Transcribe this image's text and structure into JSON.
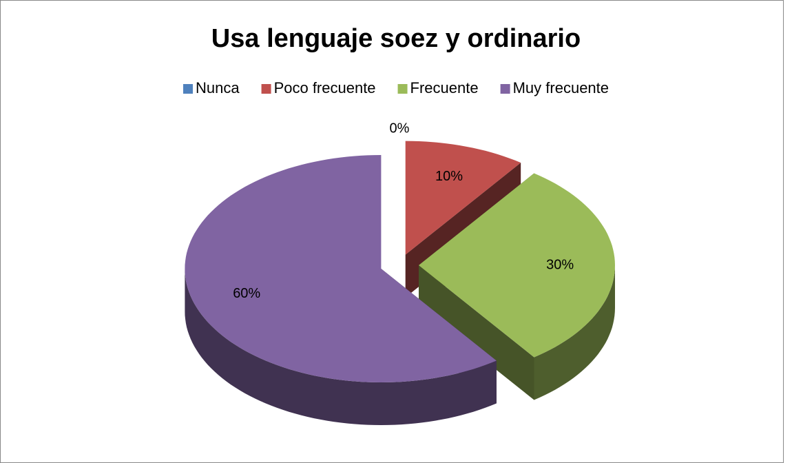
{
  "chart_data": {
    "type": "pie",
    "title": "Usa lenguaje soez y ordinario",
    "categories": [
      "Nunca",
      "Poco frecuente",
      "Frecuente",
      "Muy frecuente"
    ],
    "values": [
      0,
      10,
      30,
      60
    ],
    "value_labels": [
      "0%",
      "10%",
      "30%",
      "60%"
    ],
    "colors": [
      "#4f81bd",
      "#c0504d",
      "#9bbb59",
      "#8064a2"
    ],
    "legend": "top"
  }
}
